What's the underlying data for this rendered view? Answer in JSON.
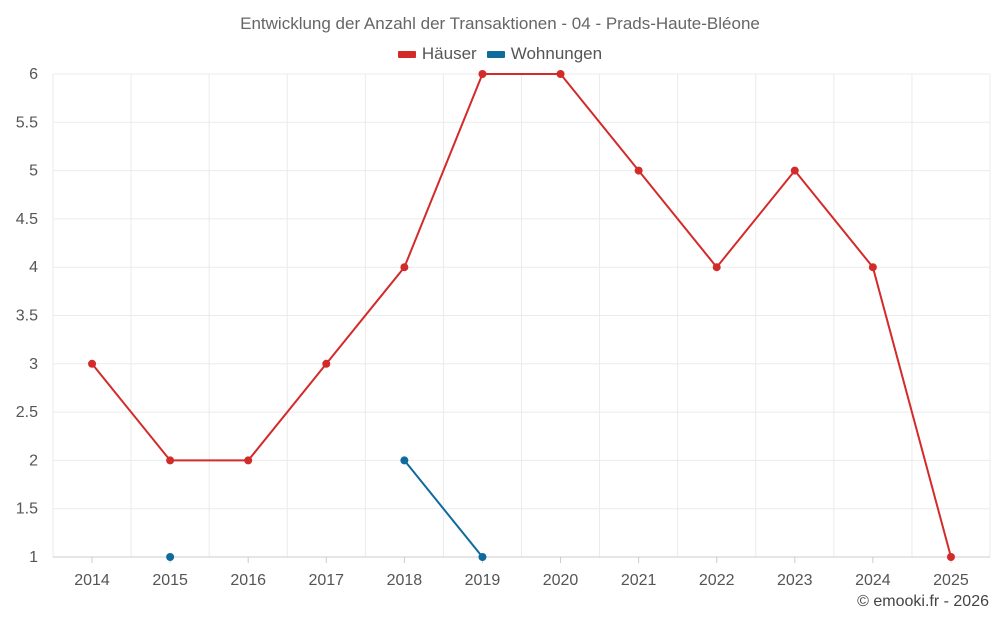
{
  "chart_data": {
    "type": "line",
    "title": "Entwicklung der Anzahl der Transaktionen - 04 - Prads-Haute-Bléone",
    "categories": [
      "2014",
      "2015",
      "2016",
      "2017",
      "2018",
      "2019",
      "2020",
      "2021",
      "2022",
      "2023",
      "2024",
      "2025"
    ],
    "series": [
      {
        "name": "Häuser",
        "color": "#d32a2a",
        "values": [
          3,
          2,
          2,
          3,
          4,
          6,
          6,
          5,
          4,
          5,
          4,
          1
        ]
      },
      {
        "name": "Wohnungen",
        "color": "#0f6a9e",
        "values": [
          null,
          1,
          null,
          null,
          2,
          1,
          null,
          null,
          null,
          null,
          null,
          null
        ]
      }
    ],
    "ylim": [
      1,
      6
    ],
    "yticks": [
      "1",
      "1.5",
      "2",
      "2.5",
      "3",
      "3.5",
      "4",
      "4.5",
      "5",
      "5.5",
      "6"
    ],
    "grid": true,
    "legend_position": "top-center",
    "xlabel": "",
    "ylabel": ""
  },
  "credit": "© emooki.fr - 2026"
}
